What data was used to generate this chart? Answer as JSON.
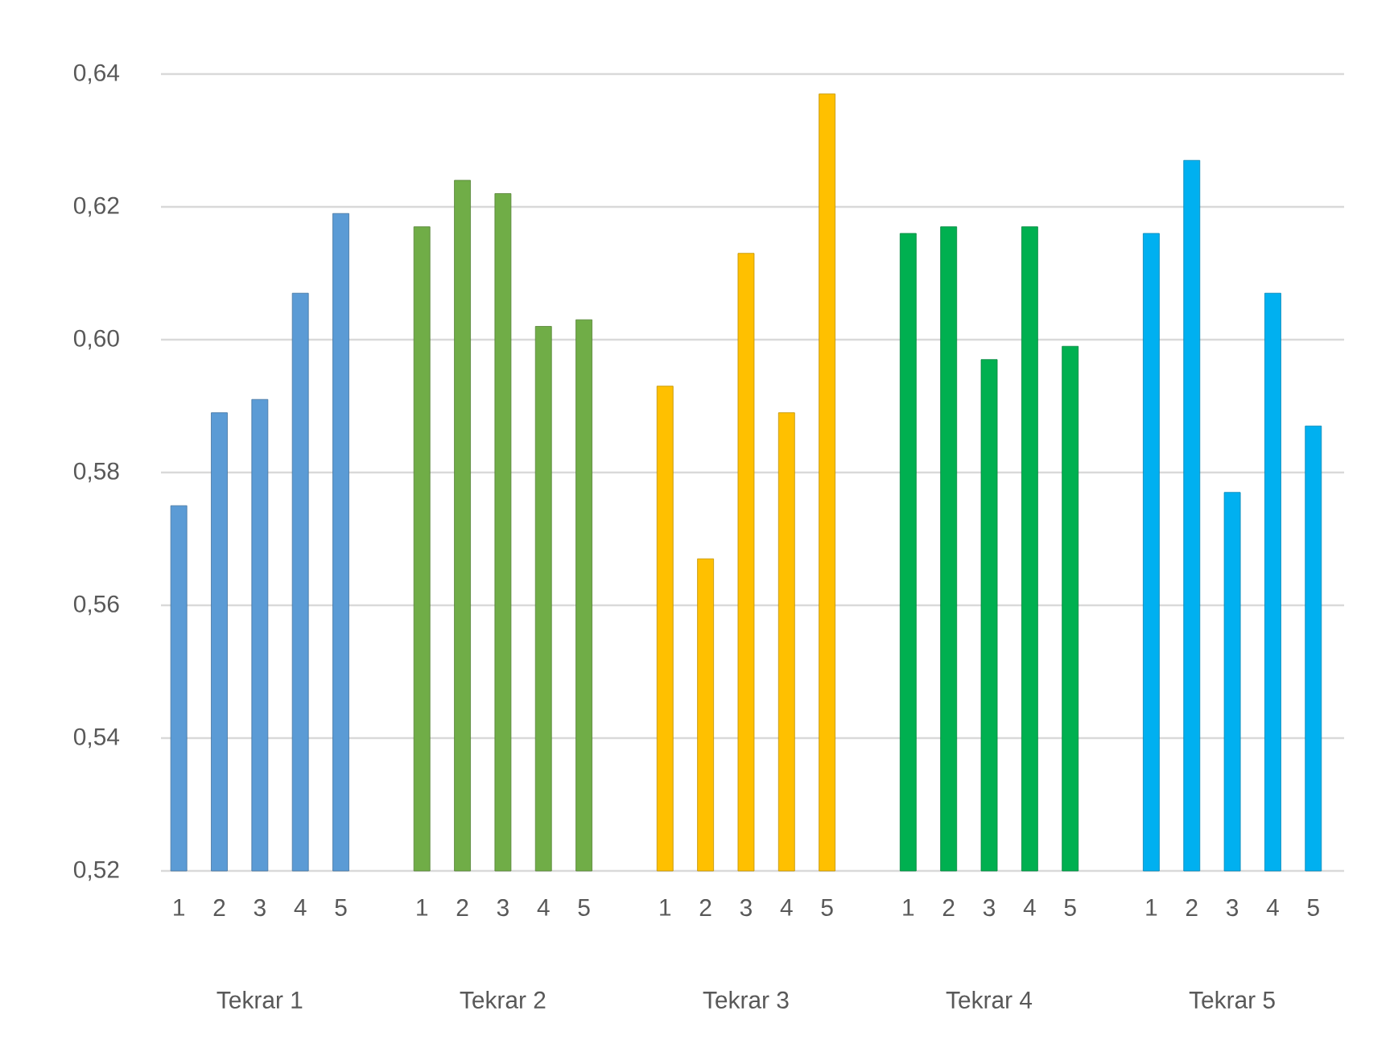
{
  "chart_data": {
    "type": "bar",
    "categories": [
      "1",
      "2",
      "3",
      "4",
      "5",
      null,
      "1",
      "2",
      "3",
      "4",
      "5",
      null,
      "1",
      "2",
      "3",
      "4",
      "5",
      null,
      "1",
      "2",
      "3",
      "4",
      "5",
      null,
      "1",
      "2",
      "3",
      "4",
      "5"
    ],
    "values": [
      0.575,
      0.589,
      0.591,
      0.607,
      0.619,
      null,
      0.617,
      0.624,
      0.622,
      0.602,
      0.603,
      null,
      0.593,
      0.567,
      0.613,
      0.589,
      0.637,
      null,
      0.616,
      0.617,
      0.597,
      0.617,
      0.599,
      null,
      0.616,
      0.627,
      0.577,
      0.607,
      0.587
    ],
    "colors": [
      "#5b9bd5",
      "#5b9bd5",
      "#5b9bd5",
      "#5b9bd5",
      "#5b9bd5",
      null,
      "#70ad47",
      "#70ad47",
      "#70ad47",
      "#70ad47",
      "#70ad47",
      null,
      "#ffc000",
      "#ffc000",
      "#ffc000",
      "#ffc000",
      "#ffc000",
      null,
      "#00b050",
      "#00b050",
      "#00b050",
      "#00b050",
      "#00b050",
      null,
      "#00b0f0",
      "#00b0f0",
      "#00b0f0",
      "#00b0f0",
      "#00b0f0"
    ],
    "annotations": [
      "Tekrar 1",
      "Tekrar 2",
      "Tekrar 3",
      "Tekrar 4",
      "Tekrar 5"
    ],
    "ylim": [
      0.52,
      0.64
    ],
    "yticks": [
      {
        "value": 0.52,
        "label": "0,52"
      },
      {
        "value": 0.54,
        "label": "0,54"
      },
      {
        "value": 0.56,
        "label": "0,56"
      },
      {
        "value": 0.58,
        "label": "0,58"
      },
      {
        "value": 0.6,
        "label": "0,60"
      },
      {
        "value": 0.62,
        "label": "0,62"
      },
      {
        "value": 0.64,
        "label": "0,64"
      }
    ],
    "grid": "y"
  }
}
